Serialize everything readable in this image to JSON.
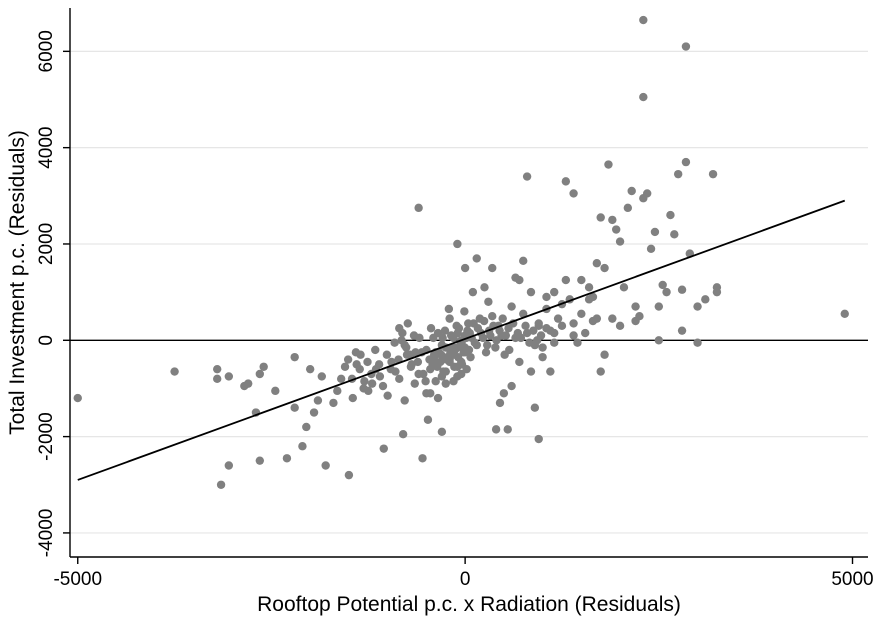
{
  "chart_data": {
    "type": "scatter",
    "title": "",
    "xlabel": "Rooftop Potential p.c. x Radiation (Residuals)",
    "ylabel": "Total Investment p.c. (Residuals)",
    "xlim": [
      -5100,
      5200
    ],
    "ylim": [
      -4500,
      6900
    ],
    "x_ticks": [
      -5000,
      0,
      5000
    ],
    "x_tick_labels": [
      "-5000",
      "0",
      "5000"
    ],
    "y_ticks": [
      -4000,
      -2000,
      0,
      2000,
      4000,
      6000
    ],
    "y_tick_labels": [
      "-4000",
      "-2000",
      "0",
      "2000",
      "4000",
      "6000"
    ],
    "grid": "horizontal",
    "zero_line": true,
    "colors": {
      "points": "#808080",
      "fit_line": "#000000",
      "grid": "#e6e6e6",
      "axis": "#000000"
    },
    "fit_line": {
      "x": [
        -5000,
        4900
      ],
      "y": [
        -2900,
        2900
      ]
    },
    "series": [
      {
        "points": [
          [
            -5000,
            -1200
          ],
          [
            -3750,
            -650
          ],
          [
            -3200,
            -600
          ],
          [
            -3200,
            -800
          ],
          [
            -3050,
            -750
          ],
          [
            -3150,
            -3000
          ],
          [
            -3050,
            -2600
          ],
          [
            -2850,
            -950
          ],
          [
            -2800,
            -900
          ],
          [
            -2700,
            -1500
          ],
          [
            -2650,
            -2500
          ],
          [
            -2600,
            -550
          ],
          [
            -2650,
            -700
          ],
          [
            -2450,
            -1050
          ],
          [
            -2300,
            -2450
          ],
          [
            -2200,
            -350
          ],
          [
            -2200,
            -1400
          ],
          [
            -2100,
            -2200
          ],
          [
            -2050,
            -1800
          ],
          [
            -2000,
            -600
          ],
          [
            -1950,
            -1500
          ],
          [
            -1900,
            -1250
          ],
          [
            -1850,
            -750
          ],
          [
            -1800,
            -2600
          ],
          [
            -1700,
            -1300
          ],
          [
            -1650,
            -1050
          ],
          [
            -1600,
            -800
          ],
          [
            -1550,
            -550
          ],
          [
            -1500,
            -2800
          ],
          [
            -1450,
            -1200
          ],
          [
            -1400,
            -500
          ],
          [
            -1350,
            -300
          ],
          [
            -1300,
            -850
          ],
          [
            -1250,
            -1050
          ],
          [
            -1200,
            -900
          ],
          [
            -1150,
            -600
          ],
          [
            -1100,
            -750
          ],
          [
            -1050,
            -2250
          ],
          [
            -1000,
            -1150
          ],
          [
            -950,
            -450
          ],
          [
            -900,
            -650
          ],
          [
            -850,
            -800
          ],
          [
            -800,
            -1950
          ],
          [
            -780,
            -1250
          ],
          [
            -750,
            -300
          ],
          [
            -700,
            -550
          ],
          [
            -650,
            -900
          ],
          [
            -600,
            -700
          ],
          [
            -550,
            -2450
          ],
          [
            -500,
            -1100
          ],
          [
            -450,
            -600
          ],
          [
            -400,
            -350
          ],
          [
            -380,
            -850
          ],
          [
            -350,
            -1200
          ],
          [
            -300,
            -750
          ],
          [
            -300,
            -1900
          ],
          [
            -250,
            -150
          ],
          [
            -250,
            -650
          ],
          [
            -200,
            450
          ],
          [
            -200,
            -400
          ],
          [
            -150,
            -850
          ],
          [
            -150,
            -300
          ],
          [
            -100,
            -550
          ],
          [
            -100,
            -150
          ],
          [
            -80,
            250
          ],
          [
            -50,
            -700
          ],
          [
            -50,
            -450
          ],
          [
            0,
            100
          ],
          [
            0,
            -250
          ],
          [
            20,
            -600
          ],
          [
            50,
            -200
          ],
          [
            60,
            150
          ],
          [
            -600,
            2750
          ],
          [
            -500,
            -200
          ],
          [
            -450,
            -1100
          ],
          [
            -400,
            -300
          ],
          [
            -350,
            150
          ],
          [
            -300,
            -100
          ],
          [
            -250,
            -900
          ],
          [
            -200,
            -450
          ],
          [
            -150,
            50
          ],
          [
            -100,
            -750
          ],
          [
            -50,
            0
          ],
          [
            -480,
            -1650
          ],
          [
            -420,
            -500
          ],
          [
            -380,
            -250
          ],
          [
            -320,
            -450
          ],
          [
            -280,
            -650
          ],
          [
            -230,
            -350
          ],
          [
            -180,
            100
          ],
          [
            -130,
            -200
          ],
          [
            -90,
            -350
          ],
          [
            -40,
            -500
          ],
          [
            -20,
            -250
          ],
          [
            -60,
            -100
          ],
          [
            -110,
            300
          ],
          [
            -160,
            -150
          ],
          [
            -210,
            650
          ],
          [
            -260,
            200
          ],
          [
            -310,
            -300
          ],
          [
            -360,
            -550
          ],
          [
            -410,
            50
          ],
          [
            -460,
            -400
          ],
          [
            -510,
            -850
          ],
          [
            -560,
            -250
          ],
          [
            -610,
            -450
          ],
          [
            -660,
            100
          ],
          [
            -710,
            -300
          ],
          [
            -760,
            -150
          ],
          [
            -810,
            150
          ],
          [
            -860,
            -400
          ],
          [
            -910,
            -50
          ],
          [
            -960,
            -600
          ],
          [
            -1010,
            -300
          ],
          [
            -1060,
            -950
          ],
          [
            -1110,
            -500
          ],
          [
            -1160,
            -200
          ],
          [
            -1210,
            -700
          ],
          [
            -1260,
            -450
          ],
          [
            -1310,
            -1000
          ],
          [
            -1360,
            -600
          ],
          [
            -1410,
            -250
          ],
          [
            -1460,
            -800
          ],
          [
            -1510,
            -400
          ],
          [
            -850,
            250
          ],
          [
            -820,
            0
          ],
          [
            -780,
            -100
          ],
          [
            -740,
            350
          ],
          [
            -690,
            -500
          ],
          [
            -640,
            -250
          ],
          [
            -590,
            50
          ],
          [
            -540,
            -700
          ],
          [
            -440,
            250
          ],
          [
            -390,
            -450
          ],
          [
            -340,
            -250
          ],
          [
            -290,
            50
          ],
          [
            -240,
            -400
          ],
          [
            -190,
            -250
          ],
          [
            -140,
            -550
          ],
          [
            -95,
            150
          ],
          [
            -45,
            -50
          ],
          [
            -10,
            600
          ],
          [
            30,
            200
          ],
          [
            70,
            -350
          ],
          [
            110,
            350
          ],
          [
            150,
            -100
          ],
          [
            190,
            450
          ],
          [
            230,
            50
          ],
          [
            270,
            -250
          ],
          [
            310,
            200
          ],
          [
            350,
            500
          ],
          [
            390,
            -150
          ],
          [
            430,
            300
          ],
          [
            470,
            100
          ],
          [
            510,
            -300
          ],
          [
            560,
            250
          ],
          [
            600,
            700
          ],
          [
            650,
            50
          ],
          [
            700,
            -450
          ],
          [
            750,
            550
          ],
          [
            800,
            150
          ],
          [
            850,
            1000
          ],
          [
            900,
            -100
          ],
          [
            950,
            300
          ],
          [
            1000,
            -150
          ],
          [
            1050,
            650
          ],
          [
            1100,
            200
          ],
          [
            1150,
            -50
          ],
          [
            1200,
            450
          ],
          [
            1300,
            1250
          ],
          [
            1350,
            850
          ],
          [
            -100,
            2000
          ],
          [
            0,
            1500
          ],
          [
            100,
            1000
          ],
          [
            150,
            1700
          ],
          [
            250,
            1100
          ],
          [
            300,
            800
          ],
          [
            350,
            1500
          ],
          [
            400,
            -1850
          ],
          [
            450,
            -1300
          ],
          [
            500,
            -1100
          ],
          [
            550,
            -1850
          ],
          [
            600,
            -950
          ],
          [
            650,
            1300
          ],
          [
            700,
            1250
          ],
          [
            750,
            1650
          ],
          [
            800,
            3400
          ],
          [
            850,
            -650
          ],
          [
            900,
            -1400
          ],
          [
            950,
            -2050
          ],
          [
            1000,
            -350
          ],
          [
            1050,
            900
          ],
          [
            1100,
            -650
          ],
          [
            1150,
            1000
          ],
          [
            1250,
            750
          ],
          [
            1300,
            3300
          ],
          [
            1400,
            3050
          ],
          [
            1500,
            1250
          ],
          [
            1600,
            1100
          ],
          [
            1650,
            900
          ],
          [
            1700,
            1600
          ],
          [
            1750,
            2550
          ],
          [
            1800,
            1500
          ],
          [
            1850,
            3650
          ],
          [
            1900,
            2500
          ],
          [
            1950,
            2300
          ],
          [
            2000,
            2050
          ],
          [
            2100,
            2750
          ],
          [
            2150,
            3100
          ],
          [
            2200,
            700
          ],
          [
            2250,
            500
          ],
          [
            2300,
            2950
          ],
          [
            2350,
            3050
          ],
          [
            2400,
            1900
          ],
          [
            2450,
            2250
          ],
          [
            2500,
            700
          ],
          [
            2550,
            1150
          ],
          [
            2600,
            1000
          ],
          [
            2650,
            2600
          ],
          [
            2700,
            2200
          ],
          [
            2750,
            3450
          ],
          [
            2800,
            1050
          ],
          [
            2850,
            3700
          ],
          [
            2900,
            1800
          ],
          [
            3000,
            700
          ],
          [
            3100,
            850
          ],
          [
            3200,
            3450
          ],
          [
            3250,
            1000
          ],
          [
            3250,
            1100
          ],
          [
            3000,
            -50
          ],
          [
            2800,
            200
          ],
          [
            2200,
            400
          ],
          [
            2000,
            300
          ],
          [
            1800,
            -300
          ],
          [
            1750,
            -650
          ],
          [
            1650,
            400
          ],
          [
            1550,
            150
          ],
          [
            1450,
            -50
          ],
          [
            1400,
            100
          ],
          [
            2300,
            5050
          ],
          [
            2300,
            6650
          ],
          [
            2850,
            6100
          ],
          [
            4900,
            550
          ],
          [
            2500,
            0
          ],
          [
            1900,
            450
          ],
          [
            2050,
            1100
          ],
          [
            1700,
            450
          ],
          [
            1600,
            850
          ],
          [
            1500,
            550
          ],
          [
            1400,
            350
          ],
          [
            1250,
            300
          ],
          [
            1150,
            150
          ],
          [
            1050,
            250
          ],
          [
            950,
            350
          ],
          [
            -5,
            -150
          ],
          [
            15,
            50
          ],
          [
            40,
            350
          ],
          [
            85,
            50
          ],
          [
            125,
            -50
          ],
          [
            165,
            250
          ],
          [
            205,
            150
          ],
          [
            245,
            400
          ],
          [
            285,
            -100
          ],
          [
            325,
            100
          ],
          [
            365,
            300
          ],
          [
            405,
            0
          ],
          [
            445,
            200
          ],
          [
            485,
            450
          ],
          [
            525,
            100
          ],
          [
            570,
            -200
          ],
          [
            620,
            350
          ],
          [
            680,
            150
          ],
          [
            720,
            50
          ],
          [
            780,
            300
          ],
          [
            830,
            -50
          ],
          [
            880,
            200
          ],
          [
            930,
            0
          ],
          [
            980,
            100
          ]
        ]
      }
    ]
  }
}
